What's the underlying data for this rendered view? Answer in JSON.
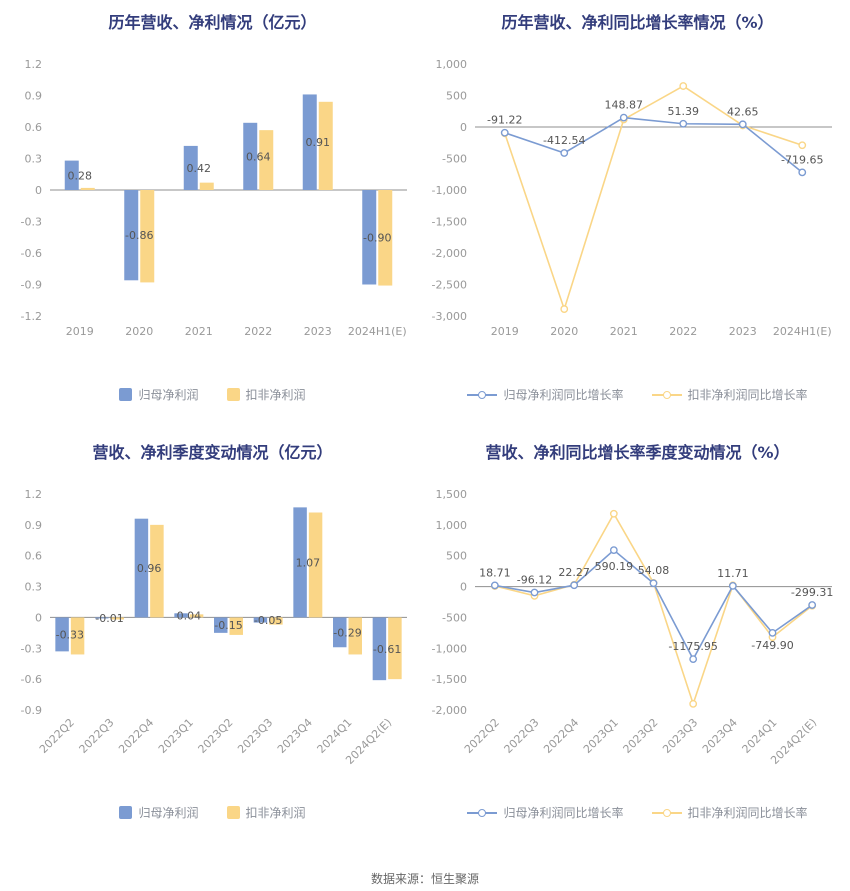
{
  "colors": {
    "blue": "#7B9BD2",
    "yellow": "#FAD687",
    "title": "#333D7C"
  },
  "footer": {
    "text": "数据来源：恒生聚源"
  },
  "chart_data": [
    {
      "type": "bar",
      "title": "历年营收、净利情况（亿元）",
      "categories": [
        "2019",
        "2020",
        "2021",
        "2022",
        "2023",
        "2024H1(E)"
      ],
      "series": [
        {
          "name": "归母净利润",
          "color_key": "blue",
          "values": [
            0.28,
            -0.86,
            0.42,
            0.64,
            0.91,
            -0.9
          ]
        },
        {
          "name": "扣非净利润",
          "color_key": "yellow",
          "values": [
            0.02,
            -0.88,
            0.07,
            0.57,
            0.84,
            -0.91
          ]
        }
      ],
      "value_labels": [
        "0.28",
        "-0.86",
        "0.42",
        "0.64",
        "0.91",
        "-0.90"
      ],
      "ylim": [
        -1.2,
        1.2
      ],
      "y_ticks": [
        {
          "v": 1.2,
          "t": "1.2"
        },
        {
          "v": 0.9,
          "t": "0.9"
        },
        {
          "v": 0.6,
          "t": "0.6"
        },
        {
          "v": 0.3,
          "t": "0.3"
        },
        {
          "v": 0,
          "t": "0"
        },
        {
          "v": -0.3,
          "t": "-0.3"
        },
        {
          "v": -0.6,
          "t": "-0.6"
        },
        {
          "v": -0.9,
          "t": "-0.9"
        },
        {
          "v": -1.2,
          "t": "-1.2"
        }
      ],
      "x_labels_rotated": false,
      "grid": false,
      "legend_position": "bottom"
    },
    {
      "type": "line",
      "title": "历年营收、净利同比增长率情况（%）",
      "categories": [
        "2019",
        "2020",
        "2021",
        "2022",
        "2023",
        "2024H1(E)"
      ],
      "series": [
        {
          "name": "归母净利润同比增长率",
          "color_key": "blue",
          "values": [
            -91.22,
            -412.54,
            148.87,
            51.39,
            42.65,
            -719.65
          ]
        },
        {
          "name": "扣非净利润同比增长率",
          "color_key": "yellow",
          "values": [
            -100,
            -2890,
            120,
            650,
            25,
            -290
          ]
        }
      ],
      "value_labels": [
        "-91.22",
        "-412.54",
        "148.87",
        "51.39",
        "42.65",
        "-719.65"
      ],
      "ylim": [
        -3000,
        1000
      ],
      "y_ticks": [
        {
          "v": 1000,
          "t": "1,000"
        },
        {
          "v": 500,
          "t": "500"
        },
        {
          "v": 0,
          "t": "0"
        },
        {
          "v": -500,
          "t": "-500"
        },
        {
          "v": -1000,
          "t": "-1,000"
        },
        {
          "v": -1500,
          "t": "-1,500"
        },
        {
          "v": -2000,
          "t": "-2,000"
        },
        {
          "v": -2500,
          "t": "-2,500"
        },
        {
          "v": -3000,
          "t": "-3,000"
        }
      ],
      "x_labels_rotated": false,
      "grid": false,
      "legend_position": "bottom"
    },
    {
      "type": "bar",
      "title": "营收、净利季度变动情况（亿元）",
      "categories": [
        "2022Q2",
        "2022Q3",
        "2022Q4",
        "2023Q1",
        "2023Q2",
        "2023Q3",
        "2023Q4",
        "2024Q1",
        "2024Q2(E)"
      ],
      "series": [
        {
          "name": "归母净利润",
          "color_key": "blue",
          "values": [
            -0.33,
            -0.01,
            0.96,
            0.04,
            -0.15,
            -0.05,
            1.07,
            -0.29,
            -0.61
          ]
        },
        {
          "name": "扣非净利润",
          "color_key": "yellow",
          "values": [
            -0.36,
            -0.02,
            0.9,
            0.03,
            -0.17,
            -0.07,
            1.02,
            -0.36,
            -0.6
          ]
        }
      ],
      "value_labels": [
        "-0.33",
        "-0.01",
        "0.96",
        "0.04",
        "-0.15",
        "-0.05",
        "1.07",
        "-0.29",
        "-0.61"
      ],
      "ylim": [
        -0.9,
        1.2
      ],
      "y_ticks": [
        {
          "v": 1.2,
          "t": "1.2"
        },
        {
          "v": 0.9,
          "t": "0.9"
        },
        {
          "v": 0.6,
          "t": "0.6"
        },
        {
          "v": 0.3,
          "t": "0.3"
        },
        {
          "v": 0,
          "t": "0"
        },
        {
          "v": -0.3,
          "t": "-0.3"
        },
        {
          "v": -0.6,
          "t": "-0.6"
        },
        {
          "v": -0.9,
          "t": "-0.9"
        }
      ],
      "x_labels_rotated": true,
      "grid": false,
      "legend_position": "bottom"
    },
    {
      "type": "line",
      "title": "营收、净利同比增长率季度变动情况（%）",
      "categories": [
        "2022Q2",
        "2022Q3",
        "2022Q4",
        "2023Q1",
        "2023Q2",
        "2023Q3",
        "2023Q4",
        "2024Q1",
        "2024Q2(E)"
      ],
      "series": [
        {
          "name": "归母净利润同比增长率",
          "color_key": "blue",
          "values": [
            18.71,
            -96.12,
            22.27,
            590.19,
            54.08,
            -1175.95,
            11.71,
            -749.9,
            -299.31
          ]
        },
        {
          "name": "扣非净利润同比增长率",
          "color_key": "yellow",
          "values": [
            10,
            -150,
            30,
            1180,
            60,
            -1900,
            20,
            -820,
            -310
          ]
        }
      ],
      "value_labels": [
        "18.71",
        "-96.12",
        "22.27",
        "590.19",
        "54.08",
        "-1175.95",
        "11.71",
        "-749.90",
        "-299.31"
      ],
      "label_dy": {
        "3": 20,
        "7": 16
      },
      "ylim": [
        -2000,
        1500
      ],
      "y_ticks": [
        {
          "v": 1500,
          "t": "1,500"
        },
        {
          "v": 1000,
          "t": "1,000"
        },
        {
          "v": 500,
          "t": "500"
        },
        {
          "v": 0,
          "t": "0"
        },
        {
          "v": -500,
          "t": "-500"
        },
        {
          "v": -1000,
          "t": "-1,000"
        },
        {
          "v": -1500,
          "t": "-1,500"
        },
        {
          "v": -2000,
          "t": "-2,000"
        }
      ],
      "x_labels_rotated": true,
      "grid": false,
      "legend_position": "bottom"
    }
  ]
}
